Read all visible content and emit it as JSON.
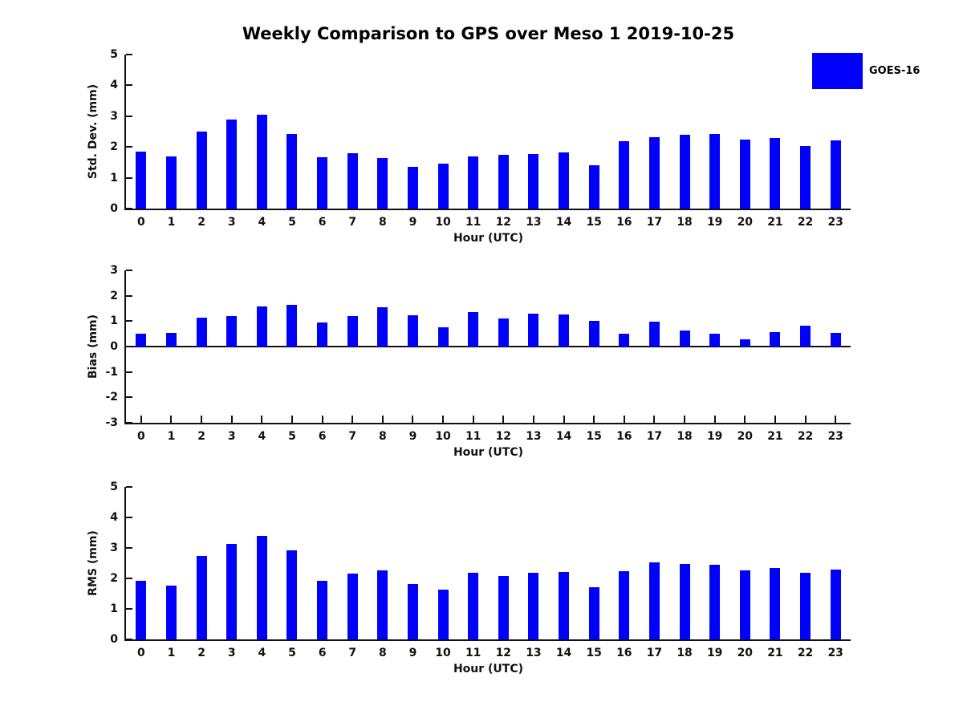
{
  "page": {
    "title": "Weekly Comparison to GPS over Meso 1 2019-10-25"
  },
  "legend": {
    "label": "GOES-16",
    "color": "#0000ff",
    "position": "top-right"
  },
  "chart_data": [
    {
      "type": "bar",
      "series_name": "GOES-16",
      "ylabel": "Std. Dev. (mm)",
      "xlabel": "Hour (UTC)",
      "ylim": [
        0,
        5
      ],
      "yticks": [
        0,
        1,
        2,
        3,
        4,
        5
      ],
      "grid": false,
      "categories": [
        "0",
        "1",
        "2",
        "3",
        "4",
        "5",
        "6",
        "7",
        "8",
        "9",
        "10",
        "11",
        "12",
        "13",
        "14",
        "15",
        "16",
        "17",
        "18",
        "19",
        "20",
        "21",
        "22",
        "23"
      ],
      "values": [
        1.85,
        1.7,
        2.5,
        2.9,
        3.04,
        2.43,
        1.66,
        1.79,
        1.64,
        1.36,
        1.46,
        1.7,
        1.75,
        1.78,
        1.82,
        1.4,
        2.2,
        2.32,
        2.4,
        2.43,
        2.25,
        2.3,
        2.03,
        2.22
      ]
    },
    {
      "type": "bar",
      "series_name": "GOES-16",
      "ylabel": "Bias (mm)",
      "xlabel": "Hour (UTC)",
      "ylim": [
        -3,
        3
      ],
      "yticks": [
        -3,
        -2,
        -1,
        0,
        1,
        2,
        3
      ],
      "grid": false,
      "categories": [
        "0",
        "1",
        "2",
        "3",
        "4",
        "5",
        "6",
        "7",
        "8",
        "9",
        "10",
        "11",
        "12",
        "13",
        "14",
        "15",
        "16",
        "17",
        "18",
        "19",
        "20",
        "21",
        "22",
        "23"
      ],
      "values": [
        0.52,
        0.53,
        1.14,
        1.2,
        1.58,
        1.64,
        0.95,
        1.2,
        1.55,
        1.23,
        0.77,
        1.35,
        1.1,
        1.3,
        1.27,
        1.0,
        0.52,
        0.97,
        0.64,
        0.5,
        0.3,
        0.58,
        0.82,
        0.55
      ]
    },
    {
      "type": "bar",
      "series_name": "GOES-16",
      "ylabel": "RMS (mm)",
      "xlabel": "Hour (UTC)",
      "ylim": [
        0,
        5
      ],
      "yticks": [
        0,
        1,
        2,
        3,
        4,
        5
      ],
      "grid": false,
      "categories": [
        "0",
        "1",
        "2",
        "3",
        "4",
        "5",
        "6",
        "7",
        "8",
        "9",
        "10",
        "11",
        "12",
        "13",
        "14",
        "15",
        "16",
        "17",
        "18",
        "19",
        "20",
        "21",
        "22",
        "23"
      ],
      "values": [
        1.93,
        1.76,
        2.75,
        3.12,
        3.4,
        2.92,
        1.93,
        2.16,
        2.26,
        1.82,
        1.63,
        2.18,
        2.08,
        2.18,
        2.22,
        1.71,
        2.24,
        2.52,
        2.47,
        2.46,
        2.26,
        2.34,
        2.19,
        2.28
      ]
    }
  ]
}
